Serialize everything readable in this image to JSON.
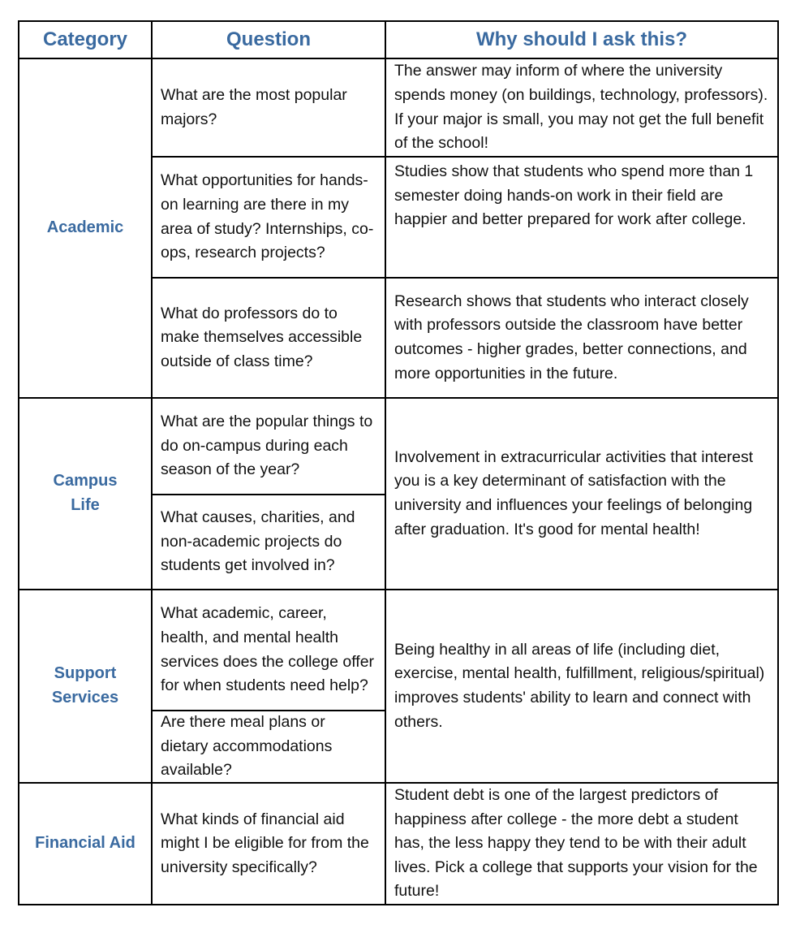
{
  "headers": [
    "Category",
    "Question",
    "Why should I ask this?"
  ],
  "accent_color": "#3a6aa0",
  "rows": [
    {
      "category": "Academic",
      "questions": [
        "What are the most popular majors?",
        "What opportunities for hands-on learning are there in my area of study? Internships, co-ops, research projects?",
        "What do professors do to make themselves accessible outside of class time?"
      ],
      "reasons": [
        "The answer may inform of where the university spends money (on buildings, technology, professors). If your major is small, you may not get the full benefit of the school!",
        "Studies show that students who spend more than 1 semester doing hands-on work in their field are happier and better prepared for work after college.",
        "Research shows that students who interact closely with professors outside the classroom have better outcomes - higher grades, better connections, and more opportunities in the future."
      ]
    },
    {
      "category": "Campus Life",
      "questions": [
        "What are the popular things to do on-campus during each season of the year?",
        "What causes, charities, and non-academic projects do students get involved in?"
      ],
      "reasons": [
        "Involvement in extracurricular activities that interest you is a key determinant of satisfaction with the university and influences your feelings of belonging after graduation. It's good for mental health!"
      ]
    },
    {
      "category": "Support Services",
      "questions": [
        "What academic, career, health, and mental health services does the college offer for when students need help?",
        "Are there meal plans or dietary accommodations available?"
      ],
      "reasons": [
        "Being healthy in all areas of life (including diet, exercise, mental health, fulfillment, religious/spiritual) improves students' ability to learn and connect with others."
      ]
    },
    {
      "category": "Financial Aid",
      "questions": [
        "What kinds of financial aid might I be eligible for from the university specifically?"
      ],
      "reasons": [
        "Student debt is one of the largest predictors of happiness after college - the more debt a student has, the less happy they tend to be with their adult lives. Pick a college that supports your vision for the future!"
      ]
    }
  ]
}
